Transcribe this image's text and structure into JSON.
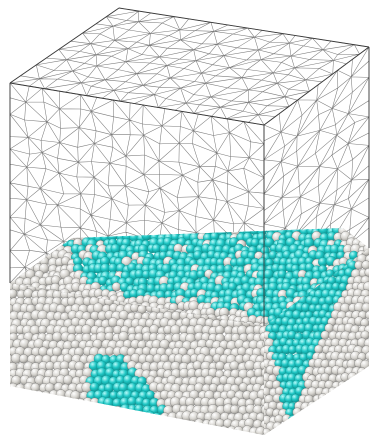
{
  "colors": {
    "background": "#ffffff",
    "mesh_line": "#5a5a5a",
    "sphere_gray": "#d8d6d1",
    "sphere_gray_shadow": "#9c9a95",
    "sphere_cyan": "#1fc6c4",
    "sphere_cyan_shadow": "#0e8f8d",
    "sphere_outline": "#6e6e6e"
  },
  "icons": {
    "scene": "packed-sphere-box-with-triangular-mesh"
  }
}
